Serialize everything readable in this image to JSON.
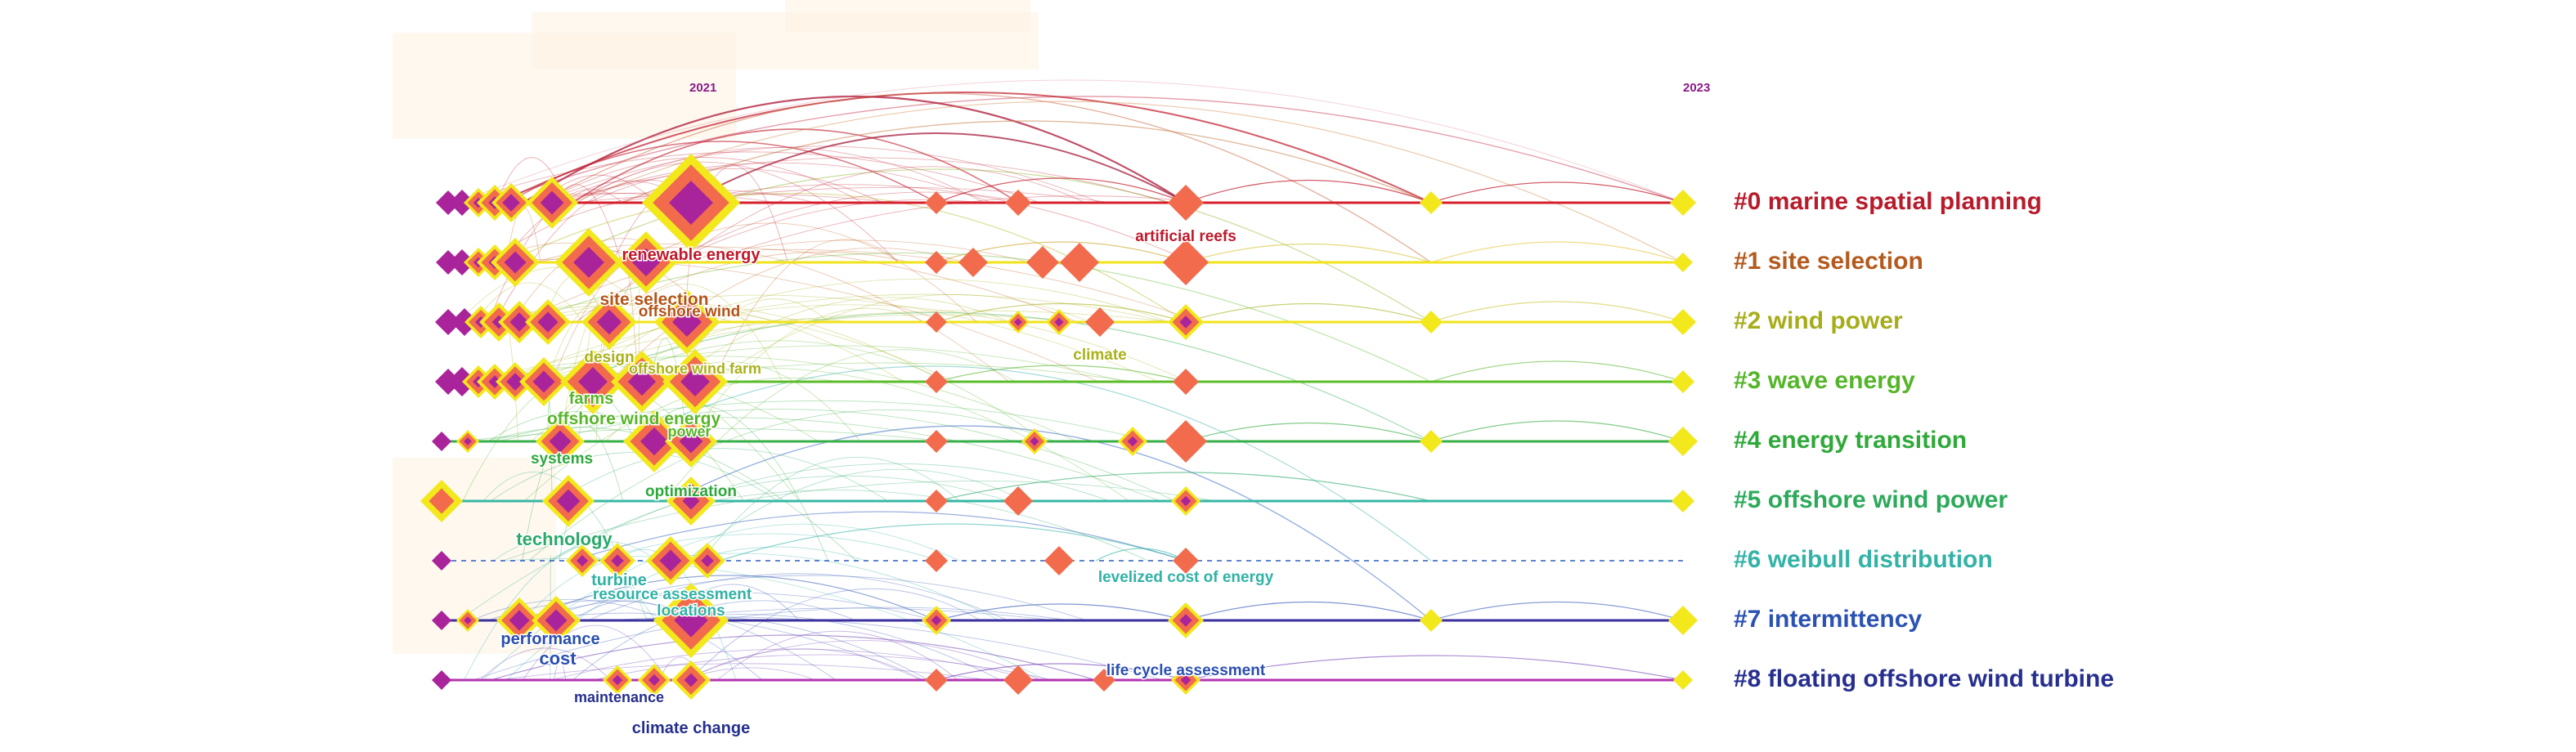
{
  "chart_data": {
    "type": "timeline",
    "years_shown": [
      "2021",
      "2023"
    ],
    "colors": {
      "c0": "#c0192b",
      "c1": "#b4541a",
      "c2": "#a9b21a",
      "c3": "#58b52a",
      "c4": "#2ea83c",
      "c5": "#2aa96b",
      "c6": "#30b2a5",
      "c7": "#2a4fb0",
      "c8": "#252f8e",
      "node_fill": "#f26b4c",
      "node_core": "#a9249a",
      "node_halo": "#f2e81c"
    },
    "clusters": [
      {
        "id": "#0",
        "label": "#0 marine spatial planning",
        "line_color": "#d61f2b",
        "label_color": "#b81b2b"
      },
      {
        "id": "#1",
        "label": "#1 site selection",
        "line_color": "#f0e31a",
        "label_color": "#b45a1e"
      },
      {
        "id": "#2",
        "label": "#2 wind power",
        "line_color": "#f0e31a",
        "label_color": "#a6ad1a"
      },
      {
        "id": "#3",
        "label": "#3 wave energy",
        "line_color": "#5bbd2a",
        "label_color": "#55b52a"
      },
      {
        "id": "#4",
        "label": "#4 energy transition",
        "line_color": "#38b049",
        "label_color": "#2fa93a"
      },
      {
        "id": "#5",
        "label": "#5 offshore wind power",
        "line_color": "#38b7a4",
        "label_color": "#2caa5a"
      },
      {
        "id": "#6",
        "label": "#6 weibull distribution",
        "line_color": "#2c5bc4",
        "label_color": "#33b3a6"
      },
      {
        "id": "#7",
        "label": "#7 intermittency",
        "line_color": "#3a2f9e",
        "label_color": "#2b52b3"
      },
      {
        "id": "#8",
        "label": "#8 floating offshore wind turbine",
        "line_color": "#b233b0",
        "label_color": "#262f8f"
      }
    ],
    "keywords": [
      {
        "text": "renewable energy",
        "color": "#c0192b"
      },
      {
        "text": "artificial reefs",
        "color": "#c0192b"
      },
      {
        "text": "site selection",
        "color": "#b4541a"
      },
      {
        "text": "offshore wind",
        "color": "#b4541a"
      },
      {
        "text": "design",
        "color": "#a9b21a"
      },
      {
        "text": "offshore wind farm",
        "color": "#a9b21a"
      },
      {
        "text": "climate",
        "color": "#a9b21a"
      },
      {
        "text": "farms",
        "color": "#58b52a"
      },
      {
        "text": "offshore wind energy",
        "color": "#58b52a"
      },
      {
        "text": "power",
        "color": "#58b52a"
      },
      {
        "text": "systems",
        "color": "#2ea83c"
      },
      {
        "text": "optimization",
        "color": "#2ea83c"
      },
      {
        "text": "technology",
        "color": "#2aa96b"
      },
      {
        "text": "turbine",
        "color": "#30b2a5"
      },
      {
        "text": "resource assessment",
        "color": "#30b2a5"
      },
      {
        "text": "locations",
        "color": "#30b2a5"
      },
      {
        "text": "levelized cost of energy",
        "color": "#30b2a5"
      },
      {
        "text": "performance",
        "color": "#2a4fb0"
      },
      {
        "text": "cost",
        "color": "#2a4fb0"
      },
      {
        "text": "life cycle assessment",
        "color": "#2a4fb0"
      },
      {
        "text": "maintenance",
        "color": "#252f8e"
      },
      {
        "text": "climate change",
        "color": "#252f8e"
      }
    ]
  }
}
